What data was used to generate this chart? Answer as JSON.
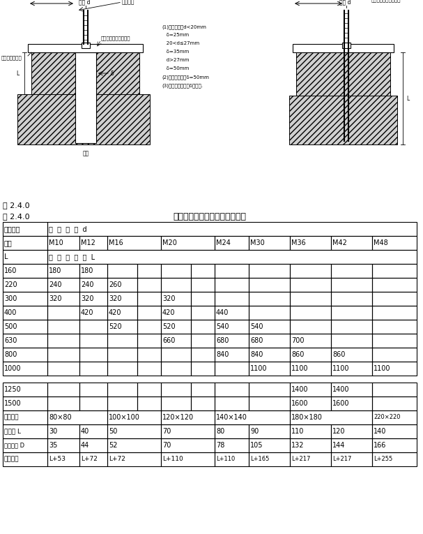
{
  "fig_label": "图 2.4.0",
  "table_label": "表 2.4.0",
  "table_title": "地脚螺栓直径和基础预留孔尺寸",
  "col_headers": [
    "M10",
    "M12",
    "M16",
    "",
    "M20",
    "",
    "M24",
    "M30",
    "M36",
    "M42",
    "M48"
  ],
  "main_data": [
    [
      "160",
      "180",
      "180",
      "",
      "",
      "",
      "",
      "",
      "",
      "",
      ""
    ],
    [
      "220",
      "240",
      "240",
      "260",
      "",
      "",
      "",
      "",
      "",
      "",
      ""
    ],
    [
      "300",
      "320",
      "320",
      "320",
      "",
      "320",
      "",
      "",
      "",
      "",
      ""
    ],
    [
      "400",
      "",
      "420",
      "420",
      "",
      "420",
      "",
      "440",
      "",
      "",
      ""
    ],
    [
      "500",
      "",
      "",
      "520",
      "",
      "520",
      "",
      "540",
      "540",
      "",
      ""
    ],
    [
      "630",
      "",
      "",
      "",
      "",
      "660",
      "",
      "680",
      "680",
      "700",
      ""
    ],
    [
      "800",
      "",
      "",
      "",
      "",
      "",
      "",
      "840",
      "840",
      "860",
      "860"
    ],
    [
      "1000",
      "",
      "",
      "",
      "",
      "",
      "",
      "",
      "1100",
      "1100",
      "1100"
    ]
  ],
  "bottom_data": [
    [
      "1250",
      "",
      "",
      "",
      "",
      "",
      "",
      "",
      "",
      "1400",
      "1400"
    ],
    [
      "1500",
      "",
      "",
      "",
      "",
      "",
      "",
      "",
      "",
      "1600",
      "1600"
    ],
    [
      "预留方孔",
      "80×80",
      "",
      "100×100",
      "",
      "120×120",
      "",
      "140×140",
      "",
      "180×180",
      "220×220"
    ],
    [
      "螺纹长 L",
      "30",
      "40",
      "50",
      "",
      "70",
      "",
      "80",
      "90",
      "110",
      "120"
    ],
    [
      "弯钩外径 D",
      "35",
      "44",
      "52",
      "",
      "70",
      "",
      "78",
      "105",
      "132",
      "144"
    ],
    [
      "展开长度",
      "L+53",
      "L+72",
      "L+72",
      "",
      "L+110",
      "",
      "L+110",
      "L+165",
      "L+217",
      "L+217"
    ]
  ],
  "notes_left": [
    "(1)地脚螺栓：d<20mm",
    "   δ=25mm",
    "   20<d≤27mm",
    "   δ=35mm",
    "   d>27mm",
    "   δ=50mm",
    "(2)大型动设备：δ=50mm",
    "(3)有特殊要求时：δ按要求."
  ]
}
